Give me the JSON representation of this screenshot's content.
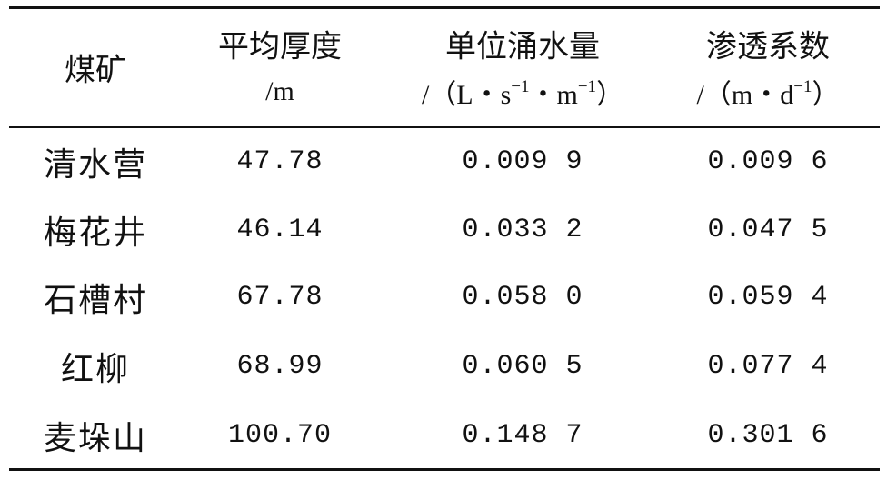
{
  "table": {
    "header": [
      {
        "title": "煤矿"
      },
      {
        "title": "平均厚度",
        "unit": [
          "/m"
        ]
      },
      {
        "title": "单位涌水量",
        "unit": [
          "/（L・s",
          "−1",
          "・m",
          "−1",
          "）"
        ]
      },
      {
        "title": "渗透系数",
        "unit": [
          "/（m・d",
          "−1",
          "）"
        ]
      }
    ],
    "rows": [
      [
        "清水营",
        "47.78",
        "0.009 9",
        "0.009 6"
      ],
      [
        "梅花井",
        "46.14",
        "0.033 2",
        "0.047 5"
      ],
      [
        "石槽村",
        "67.78",
        "0.058 0",
        "0.059 4"
      ],
      [
        "红柳",
        "68.99",
        "0.060 5",
        "0.077 4"
      ],
      [
        "麦垛山",
        "100.70",
        "0.148 7",
        "0.301 6"
      ]
    ]
  }
}
